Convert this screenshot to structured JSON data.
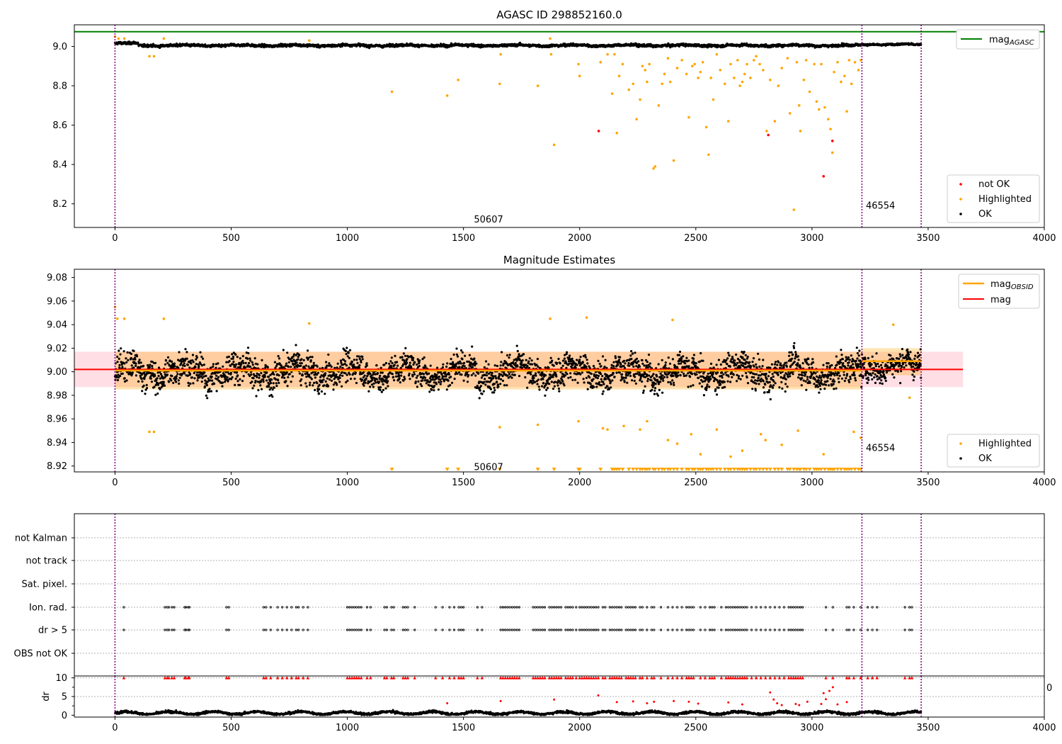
{
  "colors": {
    "agasc_line": "#008000",
    "ok": "#000000",
    "highlighted": "#ffa500",
    "not_ok": "#ff0000",
    "vline": "#800080",
    "mag_line": "#ff0000",
    "mag_obsid": "#ffa500",
    "band_fill": "#ffc0cb"
  },
  "chart_data": [
    {
      "panel": "agasc",
      "type": "scatter",
      "title": "AGASC ID 298852160.0",
      "xlim": [
        -175,
        4000
      ],
      "ylim": [
        8.08,
        9.11
      ],
      "xticks": [
        0,
        500,
        1000,
        1500,
        2000,
        2500,
        3000,
        3500,
        4000
      ],
      "yticks": [
        8.2,
        8.4,
        8.6,
        8.8,
        9.0
      ],
      "ytick_labels": [
        "8.2",
        "8.4",
        "8.6",
        "8.8",
        "9.0"
      ],
      "mag_agasc": 9.075,
      "obsid_boundaries": [
        0,
        3215,
        3470
      ],
      "obsid_labels": [
        {
          "text": "50607",
          "x": 1608,
          "y": 8.12
        },
        {
          "text": "46554",
          "x": 3295,
          "y": 8.19
        }
      ],
      "ok_band": [
        {
          "x": [
            0,
            100
          ],
          "y": [
            9.03,
            9.0
          ]
        },
        {
          "x": [
            100,
            3215
          ],
          "y": [
            9.02,
            8.99
          ]
        },
        {
          "x": [
            3215,
            3470
          ],
          "y": [
            9.02,
            9.0
          ]
        }
      ],
      "legend_top": {
        "placement": "top-right",
        "entries": [
          {
            "name": "mag",
            "sub": "AGASC"
          }
        ]
      },
      "legend_bottom": {
        "placement": "bottom-right",
        "entries": [
          "not OK",
          "Highlighted",
          "OK"
        ]
      },
      "highlighted": [
        [
          0,
          9.05
        ],
        [
          15,
          9.04
        ],
        [
          40,
          9.04
        ],
        [
          148,
          8.95
        ],
        [
          168,
          8.95
        ],
        [
          210,
          9.04
        ],
        [
          836,
          9.03
        ],
        [
          1192,
          8.77
        ],
        [
          1430,
          8.75
        ],
        [
          1477,
          8.83
        ],
        [
          1656,
          8.81
        ],
        [
          1660,
          8.96
        ],
        [
          1820,
          8.8
        ],
        [
          1873,
          9.04
        ],
        [
          1877,
          8.96
        ],
        [
          1890,
          8.5
        ],
        [
          1995,
          8.91
        ],
        [
          2000,
          8.85
        ],
        [
          2090,
          8.92
        ],
        [
          2120,
          8.96
        ],
        [
          2140,
          8.76
        ],
        [
          2150,
          8.96
        ],
        [
          2160,
          8.56
        ],
        [
          2170,
          8.85
        ],
        [
          2185,
          8.91
        ],
        [
          2212,
          8.78
        ],
        [
          2230,
          8.81
        ],
        [
          2245,
          8.63
        ],
        [
          2260,
          8.73
        ],
        [
          2270,
          8.9
        ],
        [
          2282,
          8.88
        ],
        [
          2290,
          8.82
        ],
        [
          2300,
          8.91
        ],
        [
          2318,
          8.38
        ],
        [
          2325,
          8.39
        ],
        [
          2340,
          8.7
        ],
        [
          2355,
          8.81
        ],
        [
          2365,
          8.86
        ],
        [
          2380,
          8.94
        ],
        [
          2390,
          8.82
        ],
        [
          2405,
          8.42
        ],
        [
          2420,
          8.89
        ],
        [
          2440,
          8.93
        ],
        [
          2460,
          8.86
        ],
        [
          2470,
          8.64
        ],
        [
          2485,
          8.9
        ],
        [
          2495,
          8.91
        ],
        [
          2510,
          8.84
        ],
        [
          2520,
          8.87
        ],
        [
          2530,
          8.92
        ],
        [
          2545,
          8.59
        ],
        [
          2555,
          8.45
        ],
        [
          2565,
          8.84
        ],
        [
          2575,
          8.73
        ],
        [
          2590,
          8.96
        ],
        [
          2605,
          8.88
        ],
        [
          2625,
          8.81
        ],
        [
          2640,
          8.62
        ],
        [
          2650,
          8.91
        ],
        [
          2665,
          8.84
        ],
        [
          2680,
          8.93
        ],
        [
          2690,
          8.8
        ],
        [
          2700,
          8.82
        ],
        [
          2710,
          8.86
        ],
        [
          2720,
          8.91
        ],
        [
          2735,
          8.84
        ],
        [
          2750,
          8.93
        ],
        [
          2760,
          8.95
        ],
        [
          2775,
          8.91
        ],
        [
          2790,
          8.88
        ],
        [
          2805,
          8.57
        ],
        [
          2820,
          8.83
        ],
        [
          2840,
          8.62
        ],
        [
          2855,
          8.8
        ],
        [
          2870,
          8.89
        ],
        [
          2895,
          8.94
        ],
        [
          2905,
          8.66
        ],
        [
          2922,
          8.17
        ],
        [
          2935,
          8.92
        ],
        [
          2945,
          8.7
        ],
        [
          2950,
          8.57
        ],
        [
          2965,
          8.83
        ],
        [
          2975,
          8.93
        ],
        [
          2990,
          8.77
        ],
        [
          3010,
          8.91
        ],
        [
          3020,
          8.72
        ],
        [
          3030,
          8.68
        ],
        [
          3040,
          8.91
        ],
        [
          3055,
          8.69
        ],
        [
          3070,
          8.63
        ],
        [
          3080,
          8.58
        ],
        [
          3088,
          8.46
        ],
        [
          3095,
          8.87
        ],
        [
          3110,
          8.92
        ],
        [
          3125,
          8.82
        ],
        [
          3140,
          8.85
        ],
        [
          3150,
          8.67
        ],
        [
          3160,
          8.93
        ],
        [
          3170,
          8.81
        ],
        [
          3185,
          8.92
        ],
        [
          3200,
          8.88
        ],
        [
          3210,
          8.93
        ]
      ],
      "not_ok": [
        [
          2082,
          8.57
        ],
        [
          2812,
          8.55
        ],
        [
          3050,
          8.34
        ],
        [
          3088,
          8.52
        ]
      ]
    },
    {
      "panel": "estimates",
      "type": "scatter",
      "title": "Magnitude Estimates",
      "xlim": [
        -175,
        4000
      ],
      "ylim": [
        8.915,
        9.087
      ],
      "xticks": [
        0,
        500,
        1000,
        1500,
        2000,
        2500,
        3000,
        3500,
        4000
      ],
      "yticks": [
        8.92,
        8.94,
        8.96,
        8.98,
        9.0,
        9.02,
        9.04,
        9.06,
        9.08
      ],
      "ytick_labels": [
        "8.92",
        "8.94",
        "8.96",
        "8.98",
        "9.00",
        "9.02",
        "9.04",
        "9.06",
        "9.08"
      ],
      "mag": 9.002,
      "mag_band": [
        8.987,
        9.017
      ],
      "mag_span": [
        -175,
        3650
      ],
      "mag_obsid": [
        {
          "x": [
            0,
            3215
          ],
          "y": 9.001,
          "band": [
            8.985,
            9.017
          ]
        },
        {
          "x": [
            3215,
            3470
          ],
          "y": 9.009,
          "band": [
            8.997,
            9.02
          ]
        }
      ],
      "obsid_boundaries": [
        0,
        3215,
        3470
      ],
      "obsid_labels": [
        {
          "text": "50607",
          "x": 1608,
          "y": 8.919
        },
        {
          "text": "46554",
          "x": 3295,
          "y": 8.935
        }
      ],
      "ok_band": [
        {
          "x": [
            0,
            3215
          ],
          "y": [
            9.03,
            8.97
          ]
        },
        {
          "x": [
            3215,
            3470
          ],
          "y": [
            9.03,
            8.98
          ]
        }
      ],
      "legend_top": {
        "placement": "top-right",
        "entries": [
          {
            "name": "mag",
            "sub": "OBSID"
          },
          {
            "name": "mag"
          }
        ]
      },
      "legend_bottom": {
        "placement": "bottom-right",
        "entries": [
          "Highlighted",
          "OK"
        ]
      },
      "highlighted": [
        [
          0,
          9.055
        ],
        [
          10,
          9.045
        ],
        [
          40,
          9.045
        ],
        [
          148,
          8.949
        ],
        [
          168,
          8.949
        ],
        [
          210,
          9.045
        ],
        [
          836,
          9.041
        ],
        [
          1656,
          8.953
        ],
        [
          1820,
          8.955
        ],
        [
          1873,
          9.045
        ],
        [
          1995,
          8.958
        ],
        [
          2030,
          9.046
        ],
        [
          2100,
          8.952
        ],
        [
          2120,
          8.951
        ],
        [
          2190,
          8.954
        ],
        [
          2260,
          8.951
        ],
        [
          2290,
          8.958
        ],
        [
          2380,
          8.942
        ],
        [
          2400,
          9.044
        ],
        [
          2420,
          8.939
        ],
        [
          2480,
          8.947
        ],
        [
          2520,
          8.93
        ],
        [
          2590,
          8.951
        ],
        [
          2650,
          8.928
        ],
        [
          2700,
          8.933
        ],
        [
          2780,
          8.947
        ],
        [
          2800,
          8.942
        ],
        [
          2870,
          8.938
        ],
        [
          2940,
          8.95
        ],
        [
          3050,
          8.93
        ],
        [
          3180,
          8.949
        ],
        [
          3210,
          8.944
        ],
        [
          3350,
          9.04
        ],
        [
          3420,
          8.978
        ]
      ],
      "below_range_markers": [
        1192,
        1430,
        1477,
        1656,
        1820,
        1890,
        1995,
        2000,
        2090,
        2140,
        2150,
        2160,
        2170,
        2185,
        2212,
        2230,
        2245,
        2260,
        2270,
        2282,
        2290,
        2300,
        2318,
        2325,
        2340,
        2355,
        2365,
        2380,
        2390,
        2405,
        2420,
        2440,
        2460,
        2470,
        2485,
        2495,
        2510,
        2520,
        2530,
        2545,
        2555,
        2565,
        2575,
        2590,
        2605,
        2625,
        2640,
        2650,
        2665,
        2680,
        2690,
        2700,
        2710,
        2720,
        2735,
        2750,
        2760,
        2775,
        2790,
        2805,
        2820,
        2840,
        2855,
        2870,
        2895,
        2905,
        2922,
        2935,
        2945,
        2950,
        2965,
        2975,
        2990,
        3010,
        3020,
        3030,
        3040,
        3055,
        3070,
        3080,
        3088,
        3095,
        3110,
        3125,
        3140,
        3150,
        3160,
        3170,
        3185,
        3200,
        3210
      ]
    },
    {
      "panel": "flags",
      "type": "scatter",
      "xlim": [
        -175,
        4000
      ],
      "rows": [
        "not Kalman",
        "not track",
        "Sat. pixel.",
        "Ion. rad.",
        "dr > 5",
        "OBS not OK"
      ],
      "obsid_boundaries": [
        0,
        3215,
        3470
      ],
      "flag_x": [
        38,
        215,
        225,
        232,
        245,
        255,
        300,
        305,
        315,
        320,
        480,
        490,
        640,
        650,
        670,
        700,
        720,
        740,
        760,
        780,
        790,
        810,
        830,
        1000,
        1010,
        1020,
        1030,
        1040,
        1050,
        1060,
        1085,
        1100,
        1160,
        1170,
        1190,
        1200,
        1240,
        1250,
        1260,
        1290,
        1380,
        1410,
        1440,
        1460,
        1480,
        1490,
        1500,
        1560,
        1580,
        1660,
        1670,
        1680,
        1690,
        1700,
        1710,
        1720,
        1730,
        1740,
        1800,
        1810,
        1820,
        1830,
        1840,
        1850,
        1870,
        1880,
        1890,
        1900,
        1910,
        1920,
        1940,
        1950,
        1960,
        1970,
        1985,
        2000,
        2010,
        2020,
        2030,
        2040,
        2050,
        2060,
        2070,
        2080,
        2100,
        2110,
        2130,
        2140,
        2150,
        2160,
        2170,
        2180,
        2200,
        2210,
        2220,
        2230,
        2240,
        2260,
        2270,
        2290,
        2310,
        2320,
        2350,
        2380,
        2400,
        2420,
        2440,
        2460,
        2470,
        2480,
        2490,
        2520,
        2540,
        2560,
        2570,
        2580,
        2610,
        2630,
        2640,
        2650,
        2660,
        2670,
        2680,
        2690,
        2700,
        2710,
        2720,
        2740,
        2760,
        2780,
        2800,
        2820,
        2840,
        2860,
        2880,
        2900,
        2910,
        2920,
        2930,
        2940,
        2950,
        2960,
        3060,
        3090,
        3150,
        3160,
        3180,
        3210,
        3240,
        3260,
        3280,
        3400,
        3420,
        3430
      ]
    },
    {
      "panel": "dr",
      "type": "scatter",
      "xlim": [
        -175,
        4000
      ],
      "ylim": [
        -0.5,
        10.5
      ],
      "ylabel": "dr",
      "yticks": [
        0,
        5,
        10
      ],
      "ytick_labels": [
        "0",
        "5",
        "10"
      ],
      "xticks": [
        0,
        500,
        1000,
        1500,
        2000,
        2500,
        3000,
        3500,
        4000
      ],
      "overflow_label": "0",
      "obsid_boundaries": [
        0,
        3215,
        3470
      ],
      "ok_band": [
        {
          "x": [
            0,
            3470
          ],
          "y": [
            1.8,
            0.0
          ]
        }
      ],
      "dr_red": [
        [
          1430,
          3.2
        ],
        [
          1660,
          3.8
        ],
        [
          1890,
          4.2
        ],
        [
          2080,
          5.3
        ],
        [
          2160,
          3.5
        ],
        [
          2230,
          3.7
        ],
        [
          2290,
          3.2
        ],
        [
          2320,
          3.6
        ],
        [
          2405,
          3.8
        ],
        [
          2470,
          3.6
        ],
        [
          2510,
          3.1
        ],
        [
          2640,
          3.4
        ],
        [
          2700,
          2.9
        ],
        [
          2820,
          6.1
        ],
        [
          2835,
          4.2
        ],
        [
          2850,
          3.2
        ],
        [
          2870,
          2.7
        ],
        [
          2930,
          3.0
        ],
        [
          2945,
          2.7
        ],
        [
          2980,
          3.6
        ],
        [
          3040,
          3.0
        ],
        [
          3050,
          5.9
        ],
        [
          3060,
          4.3
        ],
        [
          3075,
          6.5
        ],
        [
          3090,
          7.5
        ],
        [
          3110,
          2.9
        ],
        [
          3150,
          3.5
        ]
      ],
      "dr_above_markers": [
        38,
        215,
        225,
        232,
        245,
        255,
        300,
        305,
        315,
        320,
        480,
        490,
        640,
        650,
        670,
        700,
        720,
        740,
        760,
        780,
        790,
        810,
        830,
        1000,
        1010,
        1020,
        1030,
        1040,
        1050,
        1060,
        1085,
        1100,
        1160,
        1170,
        1190,
        1200,
        1240,
        1250,
        1260,
        1290,
        1380,
        1410,
        1440,
        1460,
        1480,
        1490,
        1500,
        1560,
        1580,
        1660,
        1670,
        1680,
        1690,
        1700,
        1710,
        1720,
        1730,
        1740,
        1800,
        1810,
        1820,
        1830,
        1840,
        1850,
        1870,
        1880,
        1890,
        1900,
        1910,
        1920,
        1940,
        1950,
        1960,
        1970,
        1985,
        2000,
        2010,
        2020,
        2030,
        2040,
        2050,
        2060,
        2070,
        2080,
        2100,
        2110,
        2130,
        2140,
        2150,
        2160,
        2170,
        2180,
        2200,
        2210,
        2220,
        2230,
        2240,
        2260,
        2270,
        2290,
        2310,
        2320,
        2350,
        2380,
        2400,
        2420,
        2440,
        2460,
        2470,
        2480,
        2490,
        2520,
        2540,
        2560,
        2570,
        2580,
        2610,
        2630,
        2640,
        2650,
        2660,
        2670,
        2680,
        2690,
        2700,
        2710,
        2720,
        2740,
        2760,
        2780,
        2800,
        2820,
        2840,
        2860,
        2880,
        2900,
        2910,
        2920,
        2930,
        2940,
        2950,
        2960,
        3060,
        3090,
        3150,
        3160,
        3180,
        3210,
        3240,
        3260,
        3280,
        3400,
        3420,
        3430
      ]
    }
  ]
}
